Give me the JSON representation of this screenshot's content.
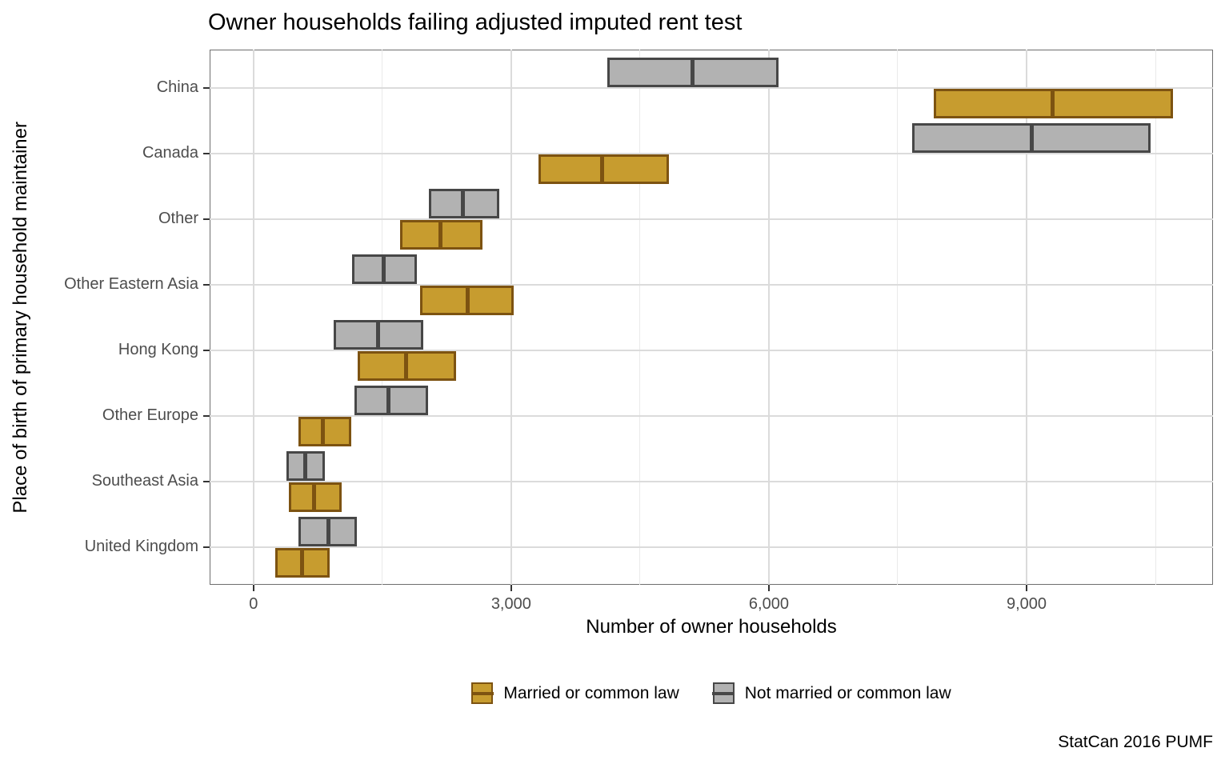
{
  "title": "Owner households failing adjusted imputed rent test",
  "caption": "StatCan 2016 PUMF",
  "colors": {
    "married_fill": "#C79C2F",
    "married_border": "#7D5311",
    "not_married_fill": "#B2B2B2",
    "not_married_border": "#474747",
    "grid_major": "#DBDBDB",
    "grid_minor": "#EAEAEA",
    "panel_border": "#6E6E6E",
    "tick_mark": "#333333",
    "tick_label": "#4D4D4D"
  },
  "chart_data": {
    "type": "crossbar-range",
    "orientation": "horizontal",
    "title": "Owner households failing adjusted imputed rent test",
    "xlabel": "Number of owner households",
    "ylabel": "Place of birth of primary household maintainer",
    "caption": "StatCan 2016 PUMF",
    "categories": [
      "China",
      "Canada",
      "Other",
      "Other Eastern Asia",
      "Hong Kong",
      "Other Europe",
      "Southeast Asia",
      "United Kingdom"
    ],
    "x_ticks": [
      0,
      3000,
      6000,
      9000
    ],
    "x_tick_labels": [
      "0",
      "3,000",
      "6,000",
      "9,000"
    ],
    "x_minor_ticks": [
      1500,
      4500,
      7500,
      10500
    ],
    "xlim": [
      -510,
      11170
    ],
    "grid": true,
    "legend_position": "bottom",
    "series": [
      {
        "name": "Married or common law",
        "fill": "#C79C2F",
        "border": "#7D5311",
        "dodge": "bottom",
        "ranges": [
          {
            "min": 7920,
            "mid": 9300,
            "max": 10700
          },
          {
            "min": 3320,
            "mid": 4060,
            "max": 4840
          },
          {
            "min": 1710,
            "mid": 2180,
            "max": 2670
          },
          {
            "min": 1940,
            "mid": 2490,
            "max": 3030
          },
          {
            "min": 1210,
            "mid": 1780,
            "max": 2360
          },
          {
            "min": 520,
            "mid": 810,
            "max": 1140
          },
          {
            "min": 410,
            "mid": 710,
            "max": 1030
          },
          {
            "min": 250,
            "mid": 570,
            "max": 890
          }
        ]
      },
      {
        "name": "Not married or common law",
        "fill": "#B2B2B2",
        "border": "#474747",
        "dodge": "top",
        "ranges": [
          {
            "min": 4120,
            "mid": 5110,
            "max": 6110
          },
          {
            "min": 7670,
            "mid": 9060,
            "max": 10440
          },
          {
            "min": 2040,
            "mid": 2440,
            "max": 2860
          },
          {
            "min": 1150,
            "mid": 1520,
            "max": 1900
          },
          {
            "min": 930,
            "mid": 1450,
            "max": 1980
          },
          {
            "min": 1180,
            "mid": 1570,
            "max": 2030
          },
          {
            "min": 380,
            "mid": 600,
            "max": 830
          },
          {
            "min": 520,
            "mid": 870,
            "max": 1200
          }
        ]
      }
    ]
  }
}
